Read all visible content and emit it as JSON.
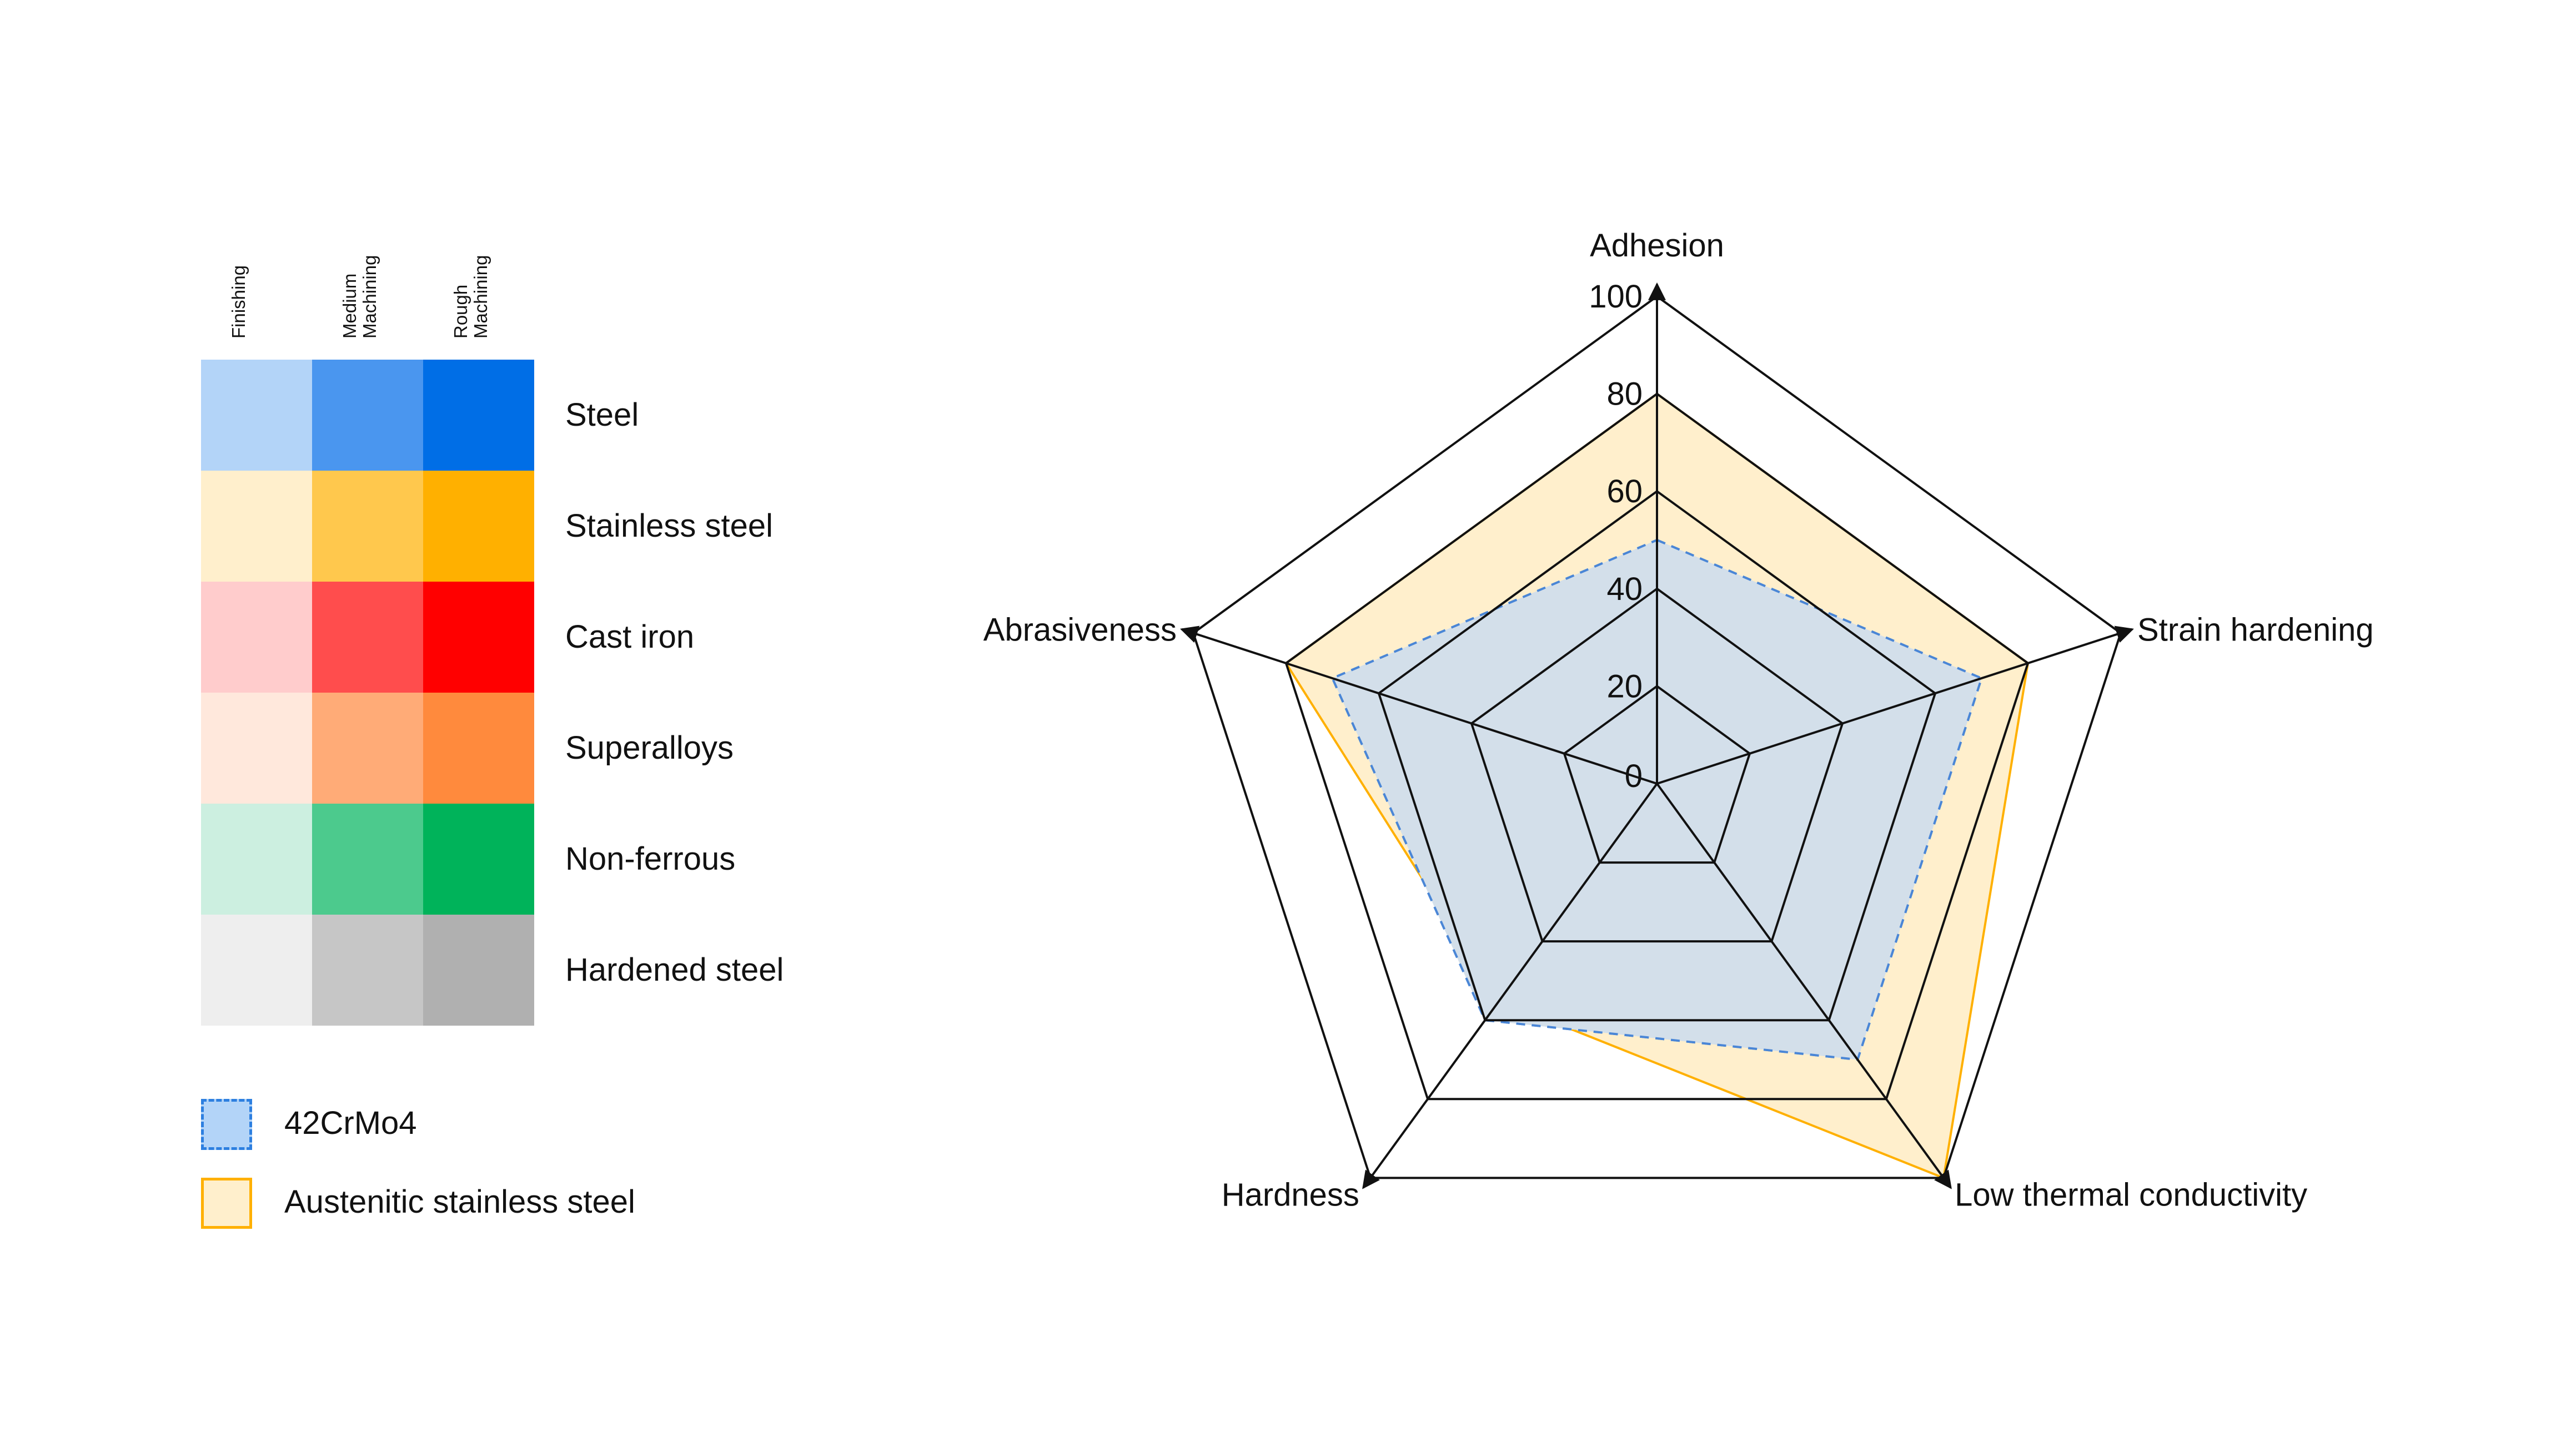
{
  "matrix": {
    "columns": [
      "Finishing",
      "Medium\nMachining",
      "Rough\nMachining"
    ],
    "rows": [
      {
        "label": "Steel",
        "colors": [
          "#b3d4f8",
          "#4a96ef",
          "#006ee6"
        ]
      },
      {
        "label": "Stainless steel",
        "colors": [
          "#ffefcc",
          "#ffc84d",
          "#ffb000"
        ]
      },
      {
        "label": "Cast iron",
        "colors": [
          "#ffcccc",
          "#ff4d4d",
          "#ff0000"
        ]
      },
      {
        "label": "Superalloys",
        "colors": [
          "#ffe8dc",
          "#ffab77",
          "#ff8a3d"
        ]
      },
      {
        "label": "Non-ferrous",
        "colors": [
          "#ccefe0",
          "#4cca8d",
          "#00b35a"
        ]
      },
      {
        "label": "Hardened steel",
        "colors": [
          "#eeeeee",
          "#c6c6c6",
          "#b0b0b0"
        ]
      }
    ]
  },
  "legend": [
    {
      "label": "42CrMo4",
      "fill": "#b3d4f8",
      "stroke": "#2d7fe0",
      "dashed": true
    },
    {
      "label": "Austenitic stainless steel",
      "fill": "#ffefcc",
      "stroke": "#ffb000",
      "dashed": false
    }
  ],
  "chart_data": {
    "type": "radar",
    "axes": [
      "Adhesion",
      "Strain hardening",
      "Low thermal conductivity",
      "Hardness",
      "Abrasiveness"
    ],
    "ticks": [
      0,
      20,
      40,
      60,
      80,
      100
    ],
    "range": [
      0,
      100
    ],
    "series": [
      {
        "name": "42CrMo4",
        "values": [
          50,
          70,
          70,
          60,
          70
        ],
        "fill": "#d3dfea",
        "stroke": "#4a86d6",
        "dashed": true
      },
      {
        "name": "Austenitic stainless steel",
        "values": [
          80,
          80,
          100,
          55,
          80
        ],
        "fill": "#ffefcc",
        "stroke": "#ffb000",
        "dashed": false
      }
    ]
  }
}
